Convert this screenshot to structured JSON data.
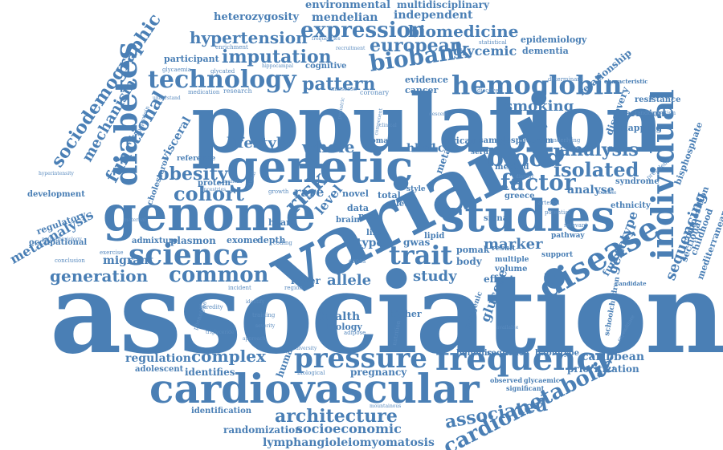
{
  "word_cloud": {
    "accent_color": "#4a7fb5",
    "background_color": "#ffffff",
    "words": [
      {
        "text": "association"
      },
      {
        "text": "population"
      },
      {
        "text": "variant"
      },
      {
        "text": "genome"
      },
      {
        "text": "genetic"
      },
      {
        "text": "cardiovascular"
      },
      {
        "text": "studies"
      },
      {
        "text": "disease"
      },
      {
        "text": "frequency"
      },
      {
        "text": "diabetes"
      },
      {
        "text": "science"
      },
      {
        "text": "hemoglobin"
      },
      {
        "text": "individual"
      },
      {
        "text": "sociodemographic"
      },
      {
        "text": "technology"
      },
      {
        "text": "cardiometabolic"
      },
      {
        "text": "pressure"
      },
      {
        "text": "architecture"
      },
      {
        "text": "associated"
      },
      {
        "text": "imputation"
      },
      {
        "text": "cohort"
      },
      {
        "text": "factor"
      },
      {
        "text": "trait"
      },
      {
        "text": "common"
      },
      {
        "text": "blood"
      },
      {
        "text": "risk"
      },
      {
        "text": "obesity"
      },
      {
        "text": "isolated"
      },
      {
        "text": "analysis"
      },
      {
        "text": "expression"
      },
      {
        "text": "biobank"
      },
      {
        "text": "pattern"
      },
      {
        "text": "european"
      },
      {
        "text": "hypertension"
      },
      {
        "text": "biomedicine"
      },
      {
        "text": "generation"
      },
      {
        "text": "complex"
      },
      {
        "text": "mechanism"
      },
      {
        "text": "functional"
      },
      {
        "text": "metaanalysis"
      },
      {
        "text": "sequencing"
      },
      {
        "text": "whole"
      },
      {
        "text": "lifestyle"
      },
      {
        "text": "level"
      },
      {
        "text": "study"
      },
      {
        "text": "allele"
      },
      {
        "text": "marker"
      },
      {
        "text": "glycemic"
      },
      {
        "text": "smoking"
      },
      {
        "text": "glucose"
      },
      {
        "text": "genotype"
      },
      {
        "text": "socioeconomic"
      },
      {
        "text": "lymphangioleiomyomatosis"
      },
      {
        "text": "randomization"
      },
      {
        "text": "regulation"
      },
      {
        "text": "caribbean"
      },
      {
        "text": "visceral"
      },
      {
        "text": "hba1c"
      },
      {
        "text": "rare"
      },
      {
        "text": "migrant"
      },
      {
        "text": "plasmon"
      },
      {
        "text": "exome"
      },
      {
        "text": "depth"
      },
      {
        "text": "heterozygosity"
      },
      {
        "text": "mendelian"
      },
      {
        "text": "independent"
      },
      {
        "text": "environmental"
      },
      {
        "text": "multidisciplinary"
      },
      {
        "text": "epidemiology"
      },
      {
        "text": "dementia"
      },
      {
        "text": "relationship"
      },
      {
        "text": "discovery"
      },
      {
        "text": "mapping"
      },
      {
        "text": "variation"
      },
      {
        "text": "resistance"
      },
      {
        "text": "bisphosphate"
      },
      {
        "text": "composition"
      },
      {
        "text": "childhood"
      },
      {
        "text": "mediterranean"
      },
      {
        "text": "sectional"
      },
      {
        "text": "function"
      },
      {
        "text": "prioritization"
      },
      {
        "text": "haplotype"
      },
      {
        "text": "hellenic"
      },
      {
        "text": "sequence"
      },
      {
        "text": "human"
      },
      {
        "text": "pregnancy"
      },
      {
        "text": "health"
      },
      {
        "text": "biology"
      },
      {
        "text": "lower"
      },
      {
        "text": "effect"
      },
      {
        "text": "volume"
      },
      {
        "text": "pomak"
      },
      {
        "text": "body"
      },
      {
        "text": "identifies"
      },
      {
        "text": "adolescent"
      },
      {
        "text": "identification"
      },
      {
        "text": "occupational"
      },
      {
        "text": "regulatory"
      },
      {
        "text": "development"
      },
      {
        "text": "admixture"
      },
      {
        "text": "cholesterol"
      },
      {
        "text": "participant"
      },
      {
        "text": "cognitive"
      },
      {
        "text": "evidence"
      },
      {
        "text": "cancer"
      },
      {
        "text": "sample"
      },
      {
        "text": "spectrum"
      },
      {
        "text": "african"
      },
      {
        "text": "serum"
      },
      {
        "text": "method"
      },
      {
        "text": "analyse"
      },
      {
        "text": "greece"
      },
      {
        "text": "ethnicity"
      },
      {
        "text": "syndrome"
      },
      {
        "text": "protein"
      },
      {
        "text": "reference"
      },
      {
        "text": "heart"
      },
      {
        "text": "brain"
      },
      {
        "text": "mas"
      },
      {
        "text": "data"
      },
      {
        "text": "novel"
      },
      {
        "text": "total"
      },
      {
        "text": "life"
      },
      {
        "text": "type"
      },
      {
        "text": "gwas"
      },
      {
        "text": "lipid"
      },
      {
        "text": "signal"
      },
      {
        "text": "result"
      },
      {
        "text": "multiple"
      },
      {
        "text": "support"
      },
      {
        "text": "pathway"
      },
      {
        "text": "meta"
      },
      {
        "text": "diet"
      },
      {
        "text": "style"
      },
      {
        "text": "higher"
      },
      {
        "text": "woman"
      },
      {
        "text": "schoolchildren"
      },
      {
        "text": "polygenic"
      },
      {
        "text": "significant"
      },
      {
        "text": "observed"
      },
      {
        "text": "glycaemic"
      },
      {
        "text": "candidate"
      },
      {
        "text": "characteristic"
      },
      {
        "text": "enrichment"
      },
      {
        "text": "glycated"
      },
      {
        "text": "medication"
      },
      {
        "text": "research"
      },
      {
        "text": "missense"
      },
      {
        "text": "coronary"
      },
      {
        "text": "discover"
      },
      {
        "text": "determinant"
      },
      {
        "text": "underlying"
      },
      {
        "text": "statistical"
      },
      {
        "text": "hippocampal"
      },
      {
        "text": "glycaemia"
      },
      {
        "text": "understand"
      },
      {
        "text": "hyperintensity"
      },
      {
        "text": "lipoprotein"
      },
      {
        "text": "pathophysiology"
      },
      {
        "text": "conclusion"
      },
      {
        "text": "exercise"
      },
      {
        "text": "maternal"
      },
      {
        "text": "triglyceride"
      },
      {
        "text": "heredity"
      },
      {
        "text": "incident"
      },
      {
        "text": "phenotype"
      },
      {
        "text": "approach"
      },
      {
        "text": "diversity"
      },
      {
        "text": "biological"
      },
      {
        "text": "adipose"
      },
      {
        "text": "training"
      },
      {
        "text": "region"
      },
      {
        "text": "cross"
      },
      {
        "text": "coding"
      },
      {
        "text": "growth"
      },
      {
        "text": "causal"
      },
      {
        "text": "ancestries"
      },
      {
        "text": "manolis"
      },
      {
        "text": "dietetic"
      },
      {
        "text": "arterial"
      },
      {
        "text": "potential"
      },
      {
        "text": "relevant"
      },
      {
        "text": "countrie"
      },
      {
        "text": "prevalence"
      },
      {
        "text": "randomisation"
      },
      {
        "text": "clinical"
      },
      {
        "text": "component"
      },
      {
        "text": "descent"
      },
      {
        "text": "pediatric"
      },
      {
        "text": "frequencies"
      },
      {
        "text": "recruitment"
      },
      {
        "text": "mountainous"
      },
      {
        "text": "available"
      },
      {
        "text": "nutrition"
      },
      {
        "text": "identify"
      },
      {
        "text": "severity"
      },
      {
        "text": "expenditure"
      }
    ]
  }
}
